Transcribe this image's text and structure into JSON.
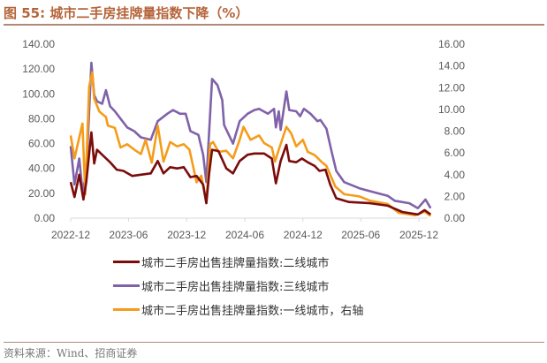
{
  "title": {
    "prefix": "图 55:",
    "text": "城市二手房挂牌量指数下降（%）"
  },
  "source": "资料来源：Wind、招商证券",
  "chart_data": {
    "type": "line",
    "title": "城市二手房挂牌量指数下降（%）",
    "x_ticks": [
      "2022-12",
      "2023-06",
      "2023-12",
      "2024-06",
      "2024-12",
      "2025-06",
      "2025-12"
    ],
    "left_axis": {
      "ylim": [
        0,
        140
      ],
      "ticks": [
        "0.00",
        "20.00",
        "40.00",
        "60.00",
        "80.00",
        "100.00",
        "120.00",
        "140.00"
      ]
    },
    "right_axis": {
      "ylim": [
        0,
        16
      ],
      "ticks": [
        "0.00",
        "2.00",
        "4.00",
        "6.00",
        "8.00",
        "10.00",
        "12.00",
        "14.00",
        "16.00"
      ]
    },
    "grid": false,
    "legend_position": "bottom",
    "series": [
      {
        "name": "城市二手房出售挂牌量指数:二线城市",
        "axis": "left",
        "color": "#7b0c0c",
        "points": [
          [
            "2022-12-01",
            29
          ],
          [
            "2022-12-13",
            17
          ],
          [
            "2022-12-28",
            35
          ],
          [
            "2023-01-10",
            15
          ],
          [
            "2023-01-19",
            29
          ],
          [
            "2023-02-04",
            69
          ],
          [
            "2023-02-13",
            44
          ],
          [
            "2023-02-22",
            55
          ],
          [
            "2023-03-10",
            51
          ],
          [
            "2023-04-04",
            45
          ],
          [
            "2023-04-25",
            39
          ],
          [
            "2023-05-16",
            38
          ],
          [
            "2023-06-13",
            34
          ],
          [
            "2023-07-10",
            35
          ],
          [
            "2023-08-10",
            36
          ],
          [
            "2023-09-01",
            46
          ],
          [
            "2023-09-19",
            36
          ],
          [
            "2023-10-10",
            41
          ],
          [
            "2023-11-01",
            40
          ],
          [
            "2023-11-22",
            41
          ],
          [
            "2023-12-13",
            33
          ],
          [
            "2024-01-01",
            34
          ],
          [
            "2024-01-22",
            27
          ],
          [
            "2024-02-01",
            12
          ],
          [
            "2024-02-10",
            36
          ],
          [
            "2024-02-19",
            55
          ],
          [
            "2024-03-10",
            54
          ],
          [
            "2024-04-04",
            40
          ],
          [
            "2024-04-25",
            36
          ],
          [
            "2024-05-16",
            46
          ],
          [
            "2024-06-10",
            51
          ],
          [
            "2024-07-01",
            52
          ],
          [
            "2024-08-01",
            52
          ],
          [
            "2024-08-25",
            48
          ],
          [
            "2024-09-07",
            28
          ],
          [
            "2024-09-22",
            46
          ],
          [
            "2024-10-10",
            59
          ],
          [
            "2024-10-19",
            46
          ],
          [
            "2024-11-10",
            45
          ],
          [
            "2024-11-28",
            48
          ],
          [
            "2024-12-16",
            45
          ],
          [
            "2025-01-07",
            42
          ],
          [
            "2025-01-22",
            38
          ],
          [
            "2025-02-10",
            39
          ],
          [
            "2025-02-25",
            27
          ],
          [
            "2025-03-16",
            16
          ],
          [
            "2025-04-25",
            13
          ],
          [
            "2025-07-01",
            12
          ],
          [
            "2025-08-25",
            10
          ],
          [
            "2025-10-10",
            5
          ],
          [
            "2025-11-28",
            3
          ],
          [
            "2025-12-19",
            6.5
          ],
          [
            "2026-01-07",
            3
          ]
        ]
      },
      {
        "name": "城市二手房出售挂牌量指数:三线城市",
        "axis": "left",
        "color": "#7f62a8",
        "points": [
          [
            "2022-12-01",
            58
          ],
          [
            "2022-12-13",
            27
          ],
          [
            "2022-12-28",
            48
          ],
          [
            "2023-01-07",
            22
          ],
          [
            "2023-01-19",
            35
          ],
          [
            "2023-02-04",
            125
          ],
          [
            "2023-02-13",
            99
          ],
          [
            "2023-02-22",
            94
          ],
          [
            "2023-03-10",
            92
          ],
          [
            "2023-03-22",
            103
          ],
          [
            "2023-04-04",
            90
          ],
          [
            "2023-04-19",
            86
          ],
          [
            "2023-05-10",
            79
          ],
          [
            "2023-05-28",
            73
          ],
          [
            "2023-06-19",
            70
          ],
          [
            "2023-07-10",
            65
          ],
          [
            "2023-08-10",
            63
          ],
          [
            "2023-09-01",
            78
          ],
          [
            "2023-10-01",
            84
          ],
          [
            "2023-10-19",
            87
          ],
          [
            "2023-11-10",
            84
          ],
          [
            "2023-11-28",
            84
          ],
          [
            "2023-12-13",
            70
          ],
          [
            "2024-01-07",
            67
          ],
          [
            "2024-01-22",
            51
          ],
          [
            "2024-02-01",
            29
          ],
          [
            "2024-02-19",
            112
          ],
          [
            "2024-03-07",
            107
          ],
          [
            "2024-03-22",
            95
          ],
          [
            "2024-03-28",
            75
          ],
          [
            "2024-04-25",
            60
          ],
          [
            "2024-05-16",
            78
          ],
          [
            "2024-06-10",
            84
          ],
          [
            "2024-07-01",
            87
          ],
          [
            "2024-07-16",
            88
          ],
          [
            "2024-08-13",
            84
          ],
          [
            "2024-09-01",
            88
          ],
          [
            "2024-09-07",
            73
          ],
          [
            "2024-09-16",
            86
          ],
          [
            "2024-09-22",
            71
          ],
          [
            "2024-10-10",
            102
          ],
          [
            "2024-10-19",
            87
          ],
          [
            "2024-11-10",
            86
          ],
          [
            "2024-11-22",
            82
          ],
          [
            "2024-12-04",
            88
          ],
          [
            "2024-12-25",
            84
          ],
          [
            "2025-01-16",
            78
          ],
          [
            "2025-01-25",
            79
          ],
          [
            "2025-02-13",
            72
          ],
          [
            "2025-02-28",
            55
          ],
          [
            "2025-03-16",
            38
          ],
          [
            "2025-04-10",
            29
          ],
          [
            "2025-05-28",
            24
          ],
          [
            "2025-07-10",
            21
          ],
          [
            "2025-08-25",
            18
          ],
          [
            "2025-09-16",
            14
          ],
          [
            "2025-11-01",
            12
          ],
          [
            "2025-11-28",
            8
          ],
          [
            "2025-12-22",
            15
          ],
          [
            "2026-01-07",
            8
          ]
        ]
      },
      {
        "name": "城市二手房出售挂牌量指数:一线城市，右轴",
        "axis": "right",
        "color": "#f59c1a",
        "points": [
          [
            "2022-12-01",
            7.6
          ],
          [
            "2022-12-13",
            5.5
          ],
          [
            "2023-01-07",
            8.7
          ],
          [
            "2023-01-16",
            2.2
          ],
          [
            "2023-01-28",
            12.1
          ],
          [
            "2023-02-07",
            13.4
          ],
          [
            "2023-02-13",
            11
          ],
          [
            "2023-03-01",
            9.8
          ],
          [
            "2023-03-22",
            9.3
          ],
          [
            "2023-03-28",
            8.5
          ],
          [
            "2023-04-19",
            8.3
          ],
          [
            "2023-05-07",
            6.5
          ],
          [
            "2023-05-28",
            6.8
          ],
          [
            "2023-06-19",
            6.3
          ],
          [
            "2023-07-10",
            5.9
          ],
          [
            "2023-07-25",
            7.2
          ],
          [
            "2023-08-13",
            5.1
          ],
          [
            "2023-09-01",
            8.5
          ],
          [
            "2023-09-19",
            5.2
          ],
          [
            "2023-10-10",
            7
          ],
          [
            "2023-11-01",
            6.6
          ],
          [
            "2023-11-22",
            6.8
          ],
          [
            "2023-12-10",
            6.3
          ],
          [
            "2024-01-01",
            3.3
          ],
          [
            "2024-01-16",
            3.9
          ],
          [
            "2024-02-01",
            1.4
          ],
          [
            "2024-02-13",
            6.8
          ],
          [
            "2024-02-22",
            7
          ],
          [
            "2024-03-10",
            6.1
          ],
          [
            "2024-04-04",
            6.2
          ],
          [
            "2024-04-25",
            5.5
          ],
          [
            "2024-05-16",
            7.2
          ],
          [
            "2024-05-28",
            8.4
          ],
          [
            "2024-06-19",
            7.2
          ],
          [
            "2024-07-16",
            7.6
          ],
          [
            "2024-08-01",
            6.9
          ],
          [
            "2024-08-25",
            6.5
          ],
          [
            "2024-09-04",
            5.2
          ],
          [
            "2024-09-16",
            6.3
          ],
          [
            "2024-10-10",
            8.4
          ],
          [
            "2024-10-25",
            7.8
          ],
          [
            "2024-11-10",
            6.6
          ],
          [
            "2024-12-01",
            7.2
          ],
          [
            "2024-12-16",
            6.1
          ],
          [
            "2025-01-07",
            5.8
          ],
          [
            "2025-01-28",
            5.2
          ],
          [
            "2025-02-13",
            4.8
          ],
          [
            "2025-03-13",
            2.9
          ],
          [
            "2025-04-10",
            2.2
          ],
          [
            "2025-05-28",
            2.0
          ],
          [
            "2025-07-01",
            1.6
          ],
          [
            "2025-08-25",
            1.3
          ],
          [
            "2025-09-28",
            0.5
          ],
          [
            "2025-11-19",
            0.27
          ],
          [
            "2025-12-19",
            0.6
          ],
          [
            "2026-01-07",
            0.2
          ]
        ]
      }
    ]
  }
}
